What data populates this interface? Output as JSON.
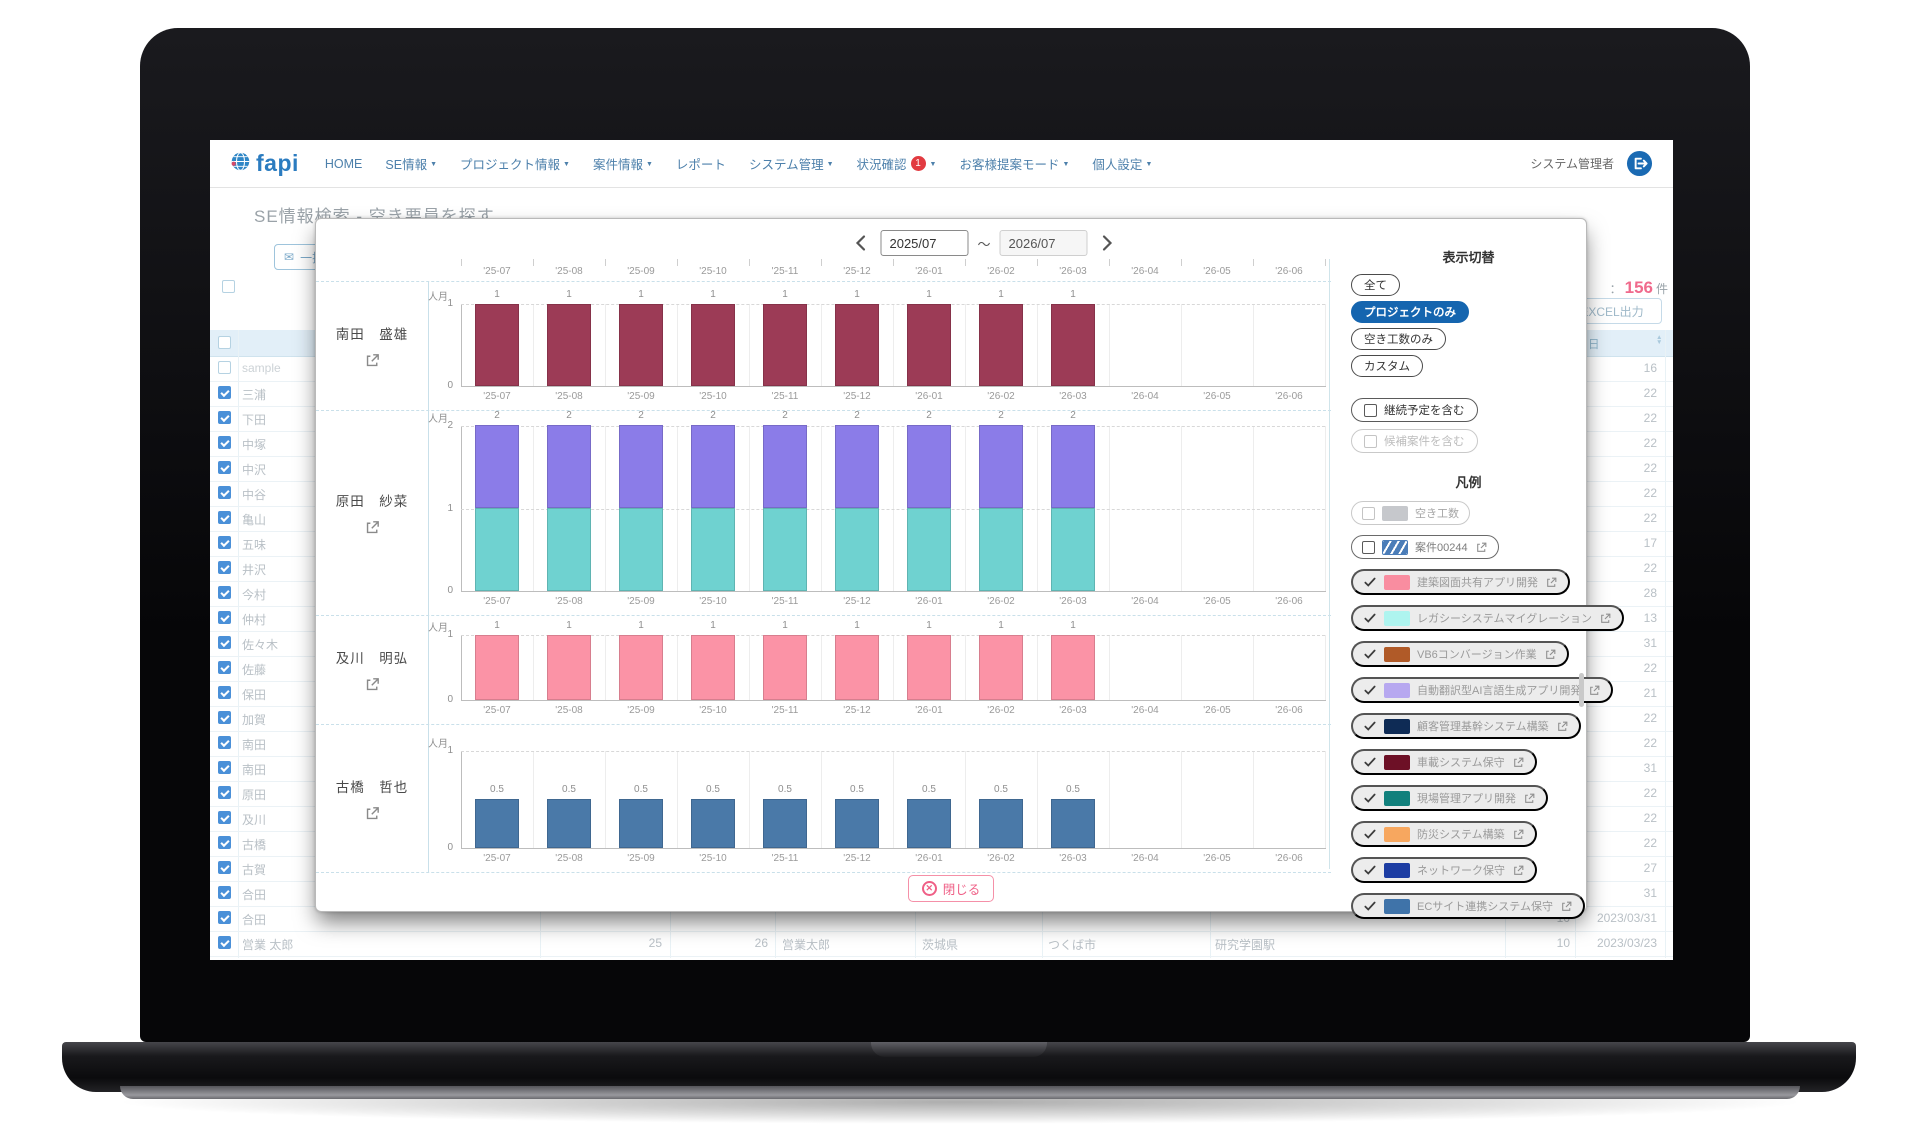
{
  "navbar": {
    "logo_text": "fapi",
    "items": [
      {
        "label": "HOME",
        "caret": false
      },
      {
        "label": "SE情報",
        "caret": true
      },
      {
        "label": "プロジェクト情報",
        "caret": true
      },
      {
        "label": "案件情報",
        "caret": true
      },
      {
        "label": "レポート",
        "caret": false
      },
      {
        "label": "システム管理",
        "caret": true
      },
      {
        "label": "状況確認",
        "caret": true,
        "badge": "1"
      },
      {
        "label": "お客様提案モード",
        "caret": true
      },
      {
        "label": "個人設定",
        "caret": true
      }
    ],
    "user_label": "システム管理者"
  },
  "page": {
    "title": "SE情報検索 - 空き要員を探す",
    "bulk_button_label": "一括送信",
    "result": {
      "separator": "：",
      "count": "156",
      "unit": "件"
    },
    "excel_button_label": "EXCEL出力",
    "table": {
      "date_header": "日",
      "sort_up": "▲",
      "sort_down": "▼",
      "rows": [
        {
          "name": "sample",
          "checked": false,
          "date_tail": "16"
        },
        {
          "name": "三浦",
          "checked": true,
          "date_tail": "22"
        },
        {
          "name": "下田",
          "checked": true,
          "date_tail": "22"
        },
        {
          "name": "中塚",
          "checked": true,
          "date_tail": "22"
        },
        {
          "name": "中沢",
          "checked": true,
          "date_tail": "22"
        },
        {
          "name": "中谷",
          "checked": true,
          "date_tail": "22"
        },
        {
          "name": "亀山",
          "checked": true,
          "date_tail": "22"
        },
        {
          "name": "五味",
          "checked": true,
          "date_tail": "17"
        },
        {
          "name": "井沢",
          "checked": true,
          "date_tail": "22"
        },
        {
          "name": "今村",
          "checked": true,
          "date_tail": "28"
        },
        {
          "name": "仲村",
          "checked": true,
          "date_tail": "13"
        },
        {
          "name": "佐々木",
          "checked": true,
          "date_tail": "31"
        },
        {
          "name": "佐藤",
          "checked": true,
          "date_tail": "22"
        },
        {
          "name": "保田",
          "checked": true,
          "date_tail": "21"
        },
        {
          "name": "加賀",
          "checked": true,
          "date_tail": "22"
        },
        {
          "name": "南田",
          "checked": true,
          "date_tail": "22"
        },
        {
          "name": "南田",
          "checked": true,
          "date_tail": "31"
        },
        {
          "name": "原田",
          "checked": true,
          "date_tail": "22"
        },
        {
          "name": "及川",
          "checked": true,
          "date_tail": "22"
        },
        {
          "name": "古橋",
          "checked": true,
          "date_tail": "22"
        },
        {
          "name": "古賀",
          "checked": true,
          "date_tail": "27"
        },
        {
          "name": "合田",
          "checked": true,
          "date_tail": "31"
        },
        {
          "name": "合田",
          "checked": true,
          "cells": {
            "c3": "10",
            "date": "2023/03/31"
          }
        },
        {
          "name": "営業 太郎",
          "checked": true,
          "cells": {
            "c1": "25",
            "c2": "26",
            "kana": "営業太郎",
            "pref": "茨城県",
            "city": "つくば市",
            "station": "研究学園駅",
            "c3": "10",
            "date": "2023/03/23"
          }
        }
      ]
    }
  },
  "modal": {
    "date_nav": {
      "from": "2025/07",
      "separator": "～",
      "to": "2026/07"
    },
    "unit_label": "人月",
    "months": [
      "'25-07",
      "'25-08",
      "'25-09",
      "'25-10",
      "'25-11",
      "'25-12",
      "'26-01",
      "'26-02",
      "'26-03",
      "'26-04",
      "'26-05",
      "'26-06"
    ],
    "rows": [
      {
        "name": "南田　盛雄",
        "ymax": 1,
        "segments": [
          {
            "color": "#9c3b56",
            "values": [
              1,
              1,
              1,
              1,
              1,
              1,
              1,
              1,
              1,
              null,
              null,
              null
            ]
          }
        ]
      },
      {
        "name": "原田　紗菜",
        "ymax": 2,
        "segments": [
          {
            "color": "#6fd2d0",
            "values": [
              1,
              1,
              1,
              1,
              1,
              1,
              1,
              1,
              1,
              null,
              null,
              null
            ]
          },
          {
            "color": "#8b7ce8",
            "values": [
              1,
              1,
              1,
              1,
              1,
              1,
              1,
              1,
              1,
              null,
              null,
              null
            ]
          }
        ]
      },
      {
        "name": "及川　明弘",
        "ymax": 1,
        "segments": [
          {
            "color": "#fb93a6",
            "values": [
              1,
              1,
              1,
              1,
              1,
              1,
              1,
              1,
              1,
              null,
              null,
              null
            ]
          }
        ]
      },
      {
        "name": "古橋　哲也",
        "ymax": 1,
        "segments": [
          {
            "color": "#4a79a8",
            "values": [
              0.5,
              0.5,
              0.5,
              0.5,
              0.5,
              0.5,
              0.5,
              0.5,
              0.5,
              null,
              null,
              null
            ]
          }
        ]
      }
    ],
    "panel": {
      "title": "表示切替",
      "modes": [
        {
          "label": "全て",
          "active": false
        },
        {
          "label": "プロジェクトのみ",
          "active": true
        },
        {
          "label": "空き工数のみ",
          "active": false
        },
        {
          "label": "カスタム",
          "active": false
        }
      ],
      "options": [
        {
          "label": "継続予定を含む",
          "checked": false,
          "disabled": false
        },
        {
          "label": "候補案件を含む",
          "checked": false,
          "disabled": true
        }
      ],
      "legend_title": "凡例",
      "legend": [
        {
          "label": "空き工数",
          "type": "checkbox",
          "muted": true,
          "swatch": "#c6c8cc",
          "link": false
        },
        {
          "label": "案件00244",
          "type": "checkbox",
          "muted": false,
          "swatch": "#4b7db8",
          "hatched": true,
          "link": true
        },
        {
          "label": "建築図面共有アプリ開発",
          "type": "checked",
          "swatch": "#f98da0",
          "link": true
        },
        {
          "label": "レガシーシステムマイグレーション",
          "type": "checked",
          "swatch": "#aef4ef",
          "link": true
        },
        {
          "label": "VB6コンバージョン作業",
          "type": "checked",
          "swatch": "#b05a28",
          "link": true
        },
        {
          "label": "自動翻訳型AI言語生成アプリ開発",
          "type": "checked",
          "swatch": "#b7a8f0",
          "link": true
        },
        {
          "label": "顧客管理基幹システム構築",
          "type": "checked",
          "swatch": "#0e2b55",
          "link": true
        },
        {
          "label": "車載システム保守",
          "type": "checked",
          "swatch": "#6d1026",
          "link": true
        },
        {
          "label": "現場管理アプリ開発",
          "type": "checked",
          "swatch": "#11807c",
          "link": true
        },
        {
          "label": "防災システム構築",
          "type": "checked",
          "swatch": "#f7a75f",
          "link": true
        },
        {
          "label": "ネットワーク保守",
          "type": "checked",
          "swatch": "#1d3da3",
          "link": true
        },
        {
          "label": "ECサイト連携システム保守",
          "type": "checked",
          "swatch": "#3f73a9",
          "link": true
        }
      ]
    },
    "close_label": "閉じる"
  },
  "chart_data": [
    {
      "type": "bar",
      "title": "南田 盛雄",
      "ylabel": "人月",
      "ylim": [
        0,
        1
      ],
      "x": [
        "'25-07",
        "'25-08",
        "'25-09",
        "'25-10",
        "'25-11",
        "'25-12",
        "'26-01",
        "'26-02",
        "'26-03",
        "'26-04",
        "'26-05",
        "'26-06"
      ],
      "values": [
        1,
        1,
        1,
        1,
        1,
        1,
        1,
        1,
        1,
        null,
        null,
        null
      ]
    },
    {
      "type": "bar",
      "stacked": true,
      "title": "原田 紗菜",
      "ylabel": "人月",
      "ylim": [
        0,
        2
      ],
      "x": [
        "'25-07",
        "'25-08",
        "'25-09",
        "'25-10",
        "'25-11",
        "'25-12",
        "'26-01",
        "'26-02",
        "'26-03",
        "'26-04",
        "'26-05",
        "'26-06"
      ],
      "series": [
        {
          "name": "segment-teal",
          "values": [
            1,
            1,
            1,
            1,
            1,
            1,
            1,
            1,
            1,
            null,
            null,
            null
          ]
        },
        {
          "name": "segment-purple",
          "values": [
            1,
            1,
            1,
            1,
            1,
            1,
            1,
            1,
            1,
            null,
            null,
            null
          ]
        }
      ]
    },
    {
      "type": "bar",
      "title": "及川 明弘",
      "ylabel": "人月",
      "ylim": [
        0,
        1
      ],
      "x": [
        "'25-07",
        "'25-08",
        "'25-09",
        "'25-10",
        "'25-11",
        "'25-12",
        "'26-01",
        "'26-02",
        "'26-03",
        "'26-04",
        "'26-05",
        "'26-06"
      ],
      "values": [
        1,
        1,
        1,
        1,
        1,
        1,
        1,
        1,
        1,
        null,
        null,
        null
      ]
    },
    {
      "type": "bar",
      "title": "古橋 哲也",
      "ylabel": "人月",
      "ylim": [
        0,
        1
      ],
      "x": [
        "'25-07",
        "'25-08",
        "'25-09",
        "'25-10",
        "'25-11",
        "'25-12",
        "'26-01",
        "'26-02",
        "'26-03",
        "'26-04",
        "'26-05",
        "'26-06"
      ],
      "values": [
        0.5,
        0.5,
        0.5,
        0.5,
        0.5,
        0.5,
        0.5,
        0.5,
        0.5,
        null,
        null,
        null
      ]
    }
  ]
}
